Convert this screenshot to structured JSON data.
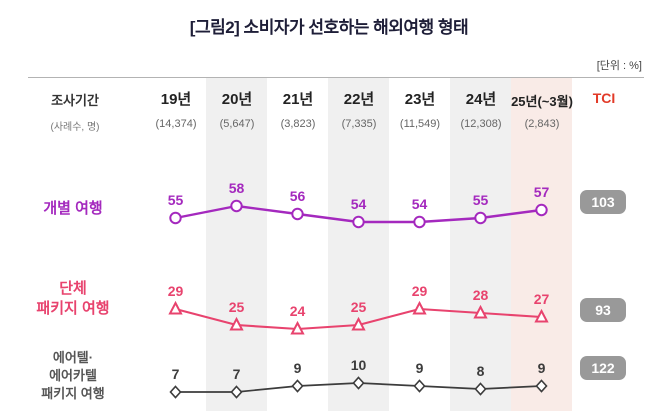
{
  "title": "[그림2] 소비자가 선호하는 해외여행 형태",
  "unit_label": "[단위 : %]",
  "header": {
    "period_label": "조사기간",
    "sample_label": "(사례수, 명)",
    "tci_label": "TCI",
    "years": [
      "19년",
      "20년",
      "21년",
      "22년",
      "23년",
      "24년",
      "25년(~3월)"
    ],
    "samples": [
      "(14,374)",
      "(5,647)",
      "(3,823)",
      "(7,335)",
      "(11,549)",
      "(12,308)",
      "(2,843)"
    ]
  },
  "row_labels": {
    "individual": [
      "개별 여행"
    ],
    "package": [
      "단체",
      "패키지 여행"
    ],
    "airtel": [
      "에어텔·",
      "에어카텔",
      "패키지 여행"
    ]
  },
  "chart_data": {
    "type": "line",
    "title": "[그림2] 소비자가 선호하는 해외여행 형태",
    "unit": "%",
    "categories": [
      "19년",
      "20년",
      "21년",
      "22년",
      "23년",
      "24년",
      "25년(~3월)"
    ],
    "sample_sizes": [
      "14,374",
      "5,647",
      "3,823",
      "7,335",
      "11,549",
      "12,308",
      "2,843"
    ],
    "legend_position": "left",
    "grid": "alternating-column-stripes",
    "highlighted_category": "25년(~3월)",
    "series": [
      {
        "name": "개별 여행",
        "values": [
          55,
          58,
          56,
          54,
          54,
          55,
          57
        ],
        "tci": "103",
        "color": "#a429be",
        "marker": "circle"
      },
      {
        "name": "단체 패키지 여행",
        "values": [
          29,
          25,
          24,
          25,
          29,
          28,
          27
        ],
        "tci": "93",
        "color": "#e8436e",
        "marker": "triangle"
      },
      {
        "name": "에어텔·에어카텔 패키지 여행",
        "values": [
          7,
          7,
          9,
          10,
          9,
          8,
          9
        ],
        "tci": "122",
        "color": "#3c3c3c",
        "marker": "diamond"
      }
    ]
  },
  "colors": {
    "stripe_gray": "#f0f0f0",
    "stripe_highlight": "#f9ebe7",
    "tci_badge_bg": "#999999",
    "tci_header_red": "#e23a28",
    "title_navy": "#1e1e38"
  }
}
